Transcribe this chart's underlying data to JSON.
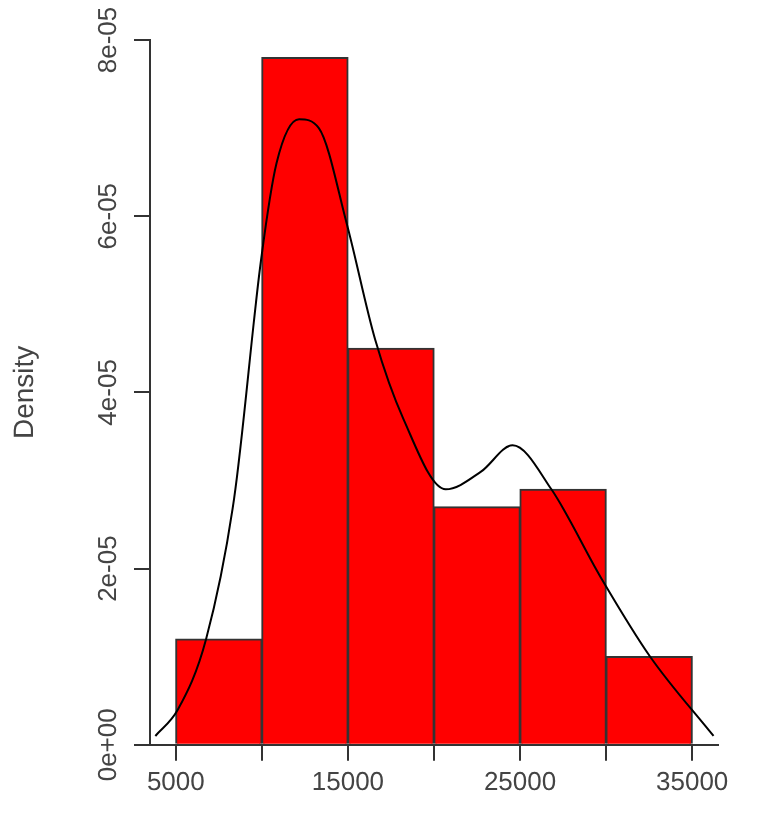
{
  "chart_data": {
    "type": "histogram",
    "ylabel": "Density",
    "bins": [
      5000,
      10000,
      15000,
      20000,
      25000,
      30000,
      35000
    ],
    "values": [
      1.2e-05,
      7.8e-05,
      4.5e-05,
      2.7e-05,
      2.9e-05,
      1e-05
    ],
    "color": "#ff0000",
    "series": [
      {
        "type": "line",
        "color": "#000000",
        "x": [
          3810,
          5120,
          6760,
          8390,
          9950,
          10850,
          12160,
          13310,
          14950,
          16580,
          18220,
          20680,
          22730,
          24570,
          26820,
          29690,
          32560,
          36240
        ],
        "values": [
          1e-06,
          4e-06,
          1.2e-05,
          2.8e-05,
          5.5e-05,
          6.6e-05,
          7.1e-05,
          7e-05,
          5.9e-05,
          4.6e-05,
          3.7e-05,
          2.9e-05,
          3.1e-05,
          3.4e-05,
          2.9e-05,
          1.9e-05,
          1e-05,
          1e-06
        ]
      }
    ],
    "xlim": [
      3500,
      36500
    ],
    "ylim": [
      0,
      8e-05
    ],
    "xticks": [
      5000,
      {
        "value": 10000,
        "label": null
      },
      15000,
      {
        "value": 20000,
        "label": null
      },
      25000,
      {
        "value": 30000,
        "label": null
      },
      35000
    ],
    "yticks": [
      {
        "value": 0,
        "label": "0e+00"
      },
      {
        "value": 2e-05,
        "label": "2e-05"
      },
      {
        "value": 4e-05,
        "label": "4e-05"
      },
      {
        "value": 6e-05,
        "label": "6e-05"
      },
      {
        "value": 8e-05,
        "label": "8e-05"
      }
    ],
    "grid": false,
    "legend": false
  }
}
